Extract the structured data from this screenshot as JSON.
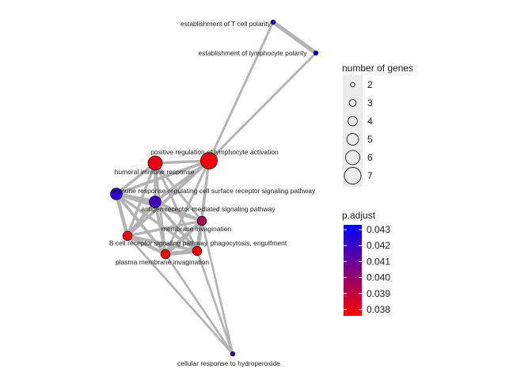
{
  "chart_data": {
    "type": "network",
    "title": "",
    "nodes": [
      {
        "id": "t_cell_polarity",
        "label": "establishment of T cell polarity",
        "genes": 2,
        "p_adjust": 0.0423
      },
      {
        "id": "lymphocyte_polarity",
        "label": "establishment of lymphocyte polarity",
        "genes": 2,
        "p_adjust": 0.0432
      },
      {
        "id": "pos_reg_lymph_activation",
        "label": "positive regulation of lymphocyte activation",
        "genes": 7,
        "p_adjust": 0.0379
      },
      {
        "id": "humoral_immune_response",
        "label": "humoral immune response",
        "genes": 6,
        "p_adjust": 0.038
      },
      {
        "id": "immune_response_receptor_pathway",
        "label": "immune response-regulating cell surface receptor signaling pathway",
        "genes": 5,
        "p_adjust": 0.0422
      },
      {
        "id": "antigen_receptor_pathway",
        "label": "antigen receptor-mediated signaling pathway",
        "genes": 5,
        "p_adjust": 0.0418
      },
      {
        "id": "membrane_invagination",
        "label": "membrane invagination",
        "genes": 4,
        "p_adjust": 0.0395
      },
      {
        "id": "b_cell_receptor_pathway",
        "label": "B cell receptor signaling pathway",
        "genes": 4,
        "p_adjust": 0.0378
      },
      {
        "id": "phagocytosis_engulfment",
        "label": "phagocytosis, engulfment",
        "genes": 4,
        "p_adjust": 0.0378
      },
      {
        "id": "plasma_membrane_invagination",
        "label": "plasma membrane invagination",
        "genes": 4,
        "p_adjust": 0.0378
      },
      {
        "id": "cellular_response_h2o2",
        "label": "cellular response to hydroperoxide",
        "genes": 2,
        "p_adjust": 0.042
      }
    ],
    "edges": [
      {
        "source": "t_cell_polarity",
        "target": "lymphocyte_polarity",
        "weight": 1.0
      },
      {
        "source": "t_cell_polarity",
        "target": "pos_reg_lymph_activation",
        "weight": 0.35
      },
      {
        "source": "lymphocyte_polarity",
        "target": "pos_reg_lymph_activation",
        "weight": 0.35
      },
      {
        "source": "pos_reg_lymph_activation",
        "target": "immune_response_receptor_pathway",
        "weight": 0.6
      },
      {
        "source": "pos_reg_lymph_activation",
        "target": "antigen_receptor_pathway",
        "weight": 0.6
      },
      {
        "source": "pos_reg_lymph_activation",
        "target": "humoral_immune_response",
        "weight": 0.5
      },
      {
        "source": "pos_reg_lymph_activation",
        "target": "membrane_invagination",
        "weight": 0.4
      },
      {
        "source": "pos_reg_lymph_activation",
        "target": "b_cell_receptor_pathway",
        "weight": 0.6
      },
      {
        "source": "pos_reg_lymph_activation",
        "target": "phagocytosis_engulfment",
        "weight": 0.4
      },
      {
        "source": "pos_reg_lymph_activation",
        "target": "plasma_membrane_invagination",
        "weight": 0.4
      },
      {
        "source": "humoral_immune_response",
        "target": "immune_response_receptor_pathway",
        "weight": 0.5
      },
      {
        "source": "humoral_immune_response",
        "target": "antigen_receptor_pathway",
        "weight": 0.5
      },
      {
        "source": "humoral_immune_response",
        "target": "b_cell_receptor_pathway",
        "weight": 0.5
      },
      {
        "source": "humoral_immune_response",
        "target": "membrane_invagination",
        "weight": 0.4
      },
      {
        "source": "humoral_immune_response",
        "target": "phagocytosis_engulfment",
        "weight": 0.4
      },
      {
        "source": "humoral_immune_response",
        "target": "plasma_membrane_invagination",
        "weight": 0.4
      },
      {
        "source": "immune_response_receptor_pathway",
        "target": "antigen_receptor_pathway",
        "weight": 1.0
      },
      {
        "source": "immune_response_receptor_pathway",
        "target": "b_cell_receptor_pathway",
        "weight": 0.8
      },
      {
        "source": "immune_response_receptor_pathway",
        "target": "membrane_invagination",
        "weight": 0.5
      },
      {
        "source": "immune_response_receptor_pathway",
        "target": "phagocytosis_engulfment",
        "weight": 0.5
      },
      {
        "source": "immune_response_receptor_pathway",
        "target": "plasma_membrane_invagination",
        "weight": 0.6
      },
      {
        "source": "antigen_receptor_pathway",
        "target": "b_cell_receptor_pathway",
        "weight": 0.8
      },
      {
        "source": "antigen_receptor_pathway",
        "target": "membrane_invagination",
        "weight": 0.6
      },
      {
        "source": "antigen_receptor_pathway",
        "target": "phagocytosis_engulfment",
        "weight": 0.6
      },
      {
        "source": "antigen_receptor_pathway",
        "target": "plasma_membrane_invagination",
        "weight": 0.6
      },
      {
        "source": "membrane_invagination",
        "target": "phagocytosis_engulfment",
        "weight": 1.0
      },
      {
        "source": "membrane_invagination",
        "target": "plasma_membrane_invagination",
        "weight": 1.0
      },
      {
        "source": "membrane_invagination",
        "target": "b_cell_receptor_pathway",
        "weight": 0.5
      },
      {
        "source": "b_cell_receptor_pathway",
        "target": "phagocytosis_engulfment",
        "weight": 0.6
      },
      {
        "source": "b_cell_receptor_pathway",
        "target": "plasma_membrane_invagination",
        "weight": 0.7
      },
      {
        "source": "phagocytosis_engulfment",
        "target": "plasma_membrane_invagination",
        "weight": 1.0
      },
      {
        "source": "cellular_response_h2o2",
        "target": "phagocytosis_engulfment",
        "weight": 0.3
      },
      {
        "source": "cellular_response_h2o2",
        "target": "plasma_membrane_invagination",
        "weight": 0.3
      },
      {
        "source": "cellular_response_h2o2",
        "target": "membrane_invagination",
        "weight": 0.3
      },
      {
        "source": "cellular_response_h2o2",
        "target": "b_cell_receptor_pathway",
        "weight": 0.3
      }
    ],
    "legend_size": {
      "title": "number of genes",
      "values": [
        2,
        3,
        4,
        5,
        6,
        7
      ]
    },
    "legend_color": {
      "title": "p.adjust",
      "ticks": [
        0.043,
        0.042,
        0.041,
        0.04,
        0.039,
        0.038
      ],
      "tick_labels": [
        "0.043",
        "0.042",
        "0.041",
        "0.040",
        "0.039",
        "0.038"
      ],
      "range": [
        0.0376,
        0.0433
      ],
      "low_color": "#ff0000",
      "high_color": "#0000ff"
    },
    "edge_color": "#b3b3b3",
    "legend_placement": "right"
  }
}
